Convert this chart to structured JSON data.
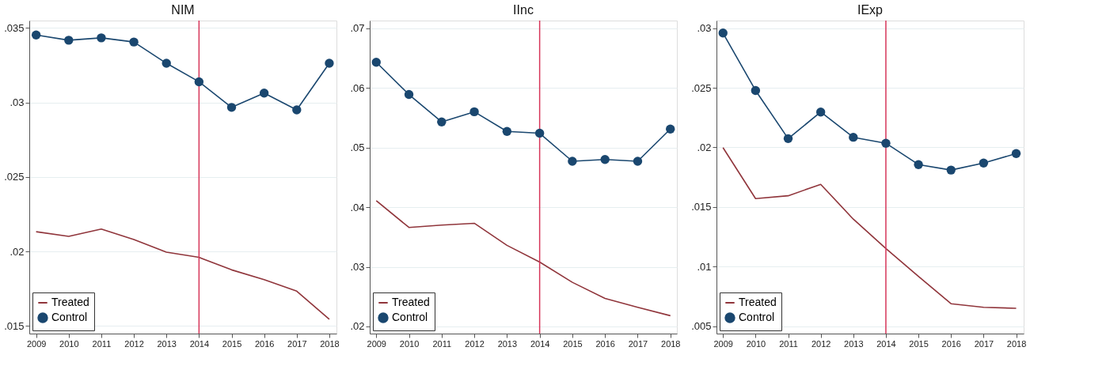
{
  "chart_data": [
    {
      "type": "line",
      "title": "NIM",
      "x": [
        2009,
        2010,
        2011,
        2012,
        2013,
        2014,
        2015,
        2016,
        2017,
        2018
      ],
      "xlim": [
        2008.79,
        2018.22
      ],
      "xticks": [
        2009,
        2010,
        2011,
        2012,
        2013,
        2014,
        2015,
        2016,
        2017,
        2018
      ],
      "ylim": [
        0.01448,
        0.0355
      ],
      "yticks": [
        {
          "value": 0.015,
          "label": ".015"
        },
        {
          "value": 0.02,
          "label": ".02"
        },
        {
          "value": 0.025,
          "label": ".025"
        },
        {
          "value": 0.03,
          "label": ".03"
        },
        {
          "value": 0.035,
          "label": ".035"
        }
      ],
      "grid": "y",
      "legend": "bottom left",
      "ref_lines": [
        {
          "axis": "x",
          "value": 2014,
          "color": "#d6365a"
        }
      ],
      "series": [
        {
          "name": "Treated",
          "color": "#90353b",
          "marker": "none",
          "values": [
            0.02132,
            0.02101,
            0.0215,
            0.0208,
            0.01995,
            0.0196,
            0.01876,
            0.0181,
            0.01733,
            0.01544
          ]
        },
        {
          "name": "Control",
          "color": "#1a476f",
          "marker": "circle",
          "values": [
            0.03453,
            0.03418,
            0.03434,
            0.03406,
            0.03263,
            0.03139,
            0.02967,
            0.03063,
            0.0295,
            0.03263
          ]
        }
      ]
    },
    {
      "type": "line",
      "title": "IInc",
      "x": [
        2009,
        2010,
        2011,
        2012,
        2013,
        2014,
        2015,
        2016,
        2017,
        2018
      ],
      "xlim": [
        2008.8,
        2018.2
      ],
      "xticks": [
        2009,
        2010,
        2011,
        2012,
        2013,
        2014,
        2015,
        2016,
        2017,
        2018
      ],
      "ylim": [
        0.0188,
        0.0713
      ],
      "yticks": [
        {
          "value": 0.02,
          "label": ".02"
        },
        {
          "value": 0.03,
          "label": ".03"
        },
        {
          "value": 0.04,
          "label": ".04"
        },
        {
          "value": 0.05,
          "label": ".05"
        },
        {
          "value": 0.06,
          "label": ".06"
        },
        {
          "value": 0.07,
          "label": ".07"
        }
      ],
      "grid": "y",
      "legend": "bottom left",
      "ref_lines": [
        {
          "axis": "x",
          "value": 2014,
          "color": "#d6365a"
        }
      ],
      "series": [
        {
          "name": "Treated",
          "color": "#90353b",
          "marker": "none",
          "values": [
            0.0411,
            0.0366,
            0.037,
            0.0373,
            0.0336,
            0.0308,
            0.0274,
            0.0247,
            0.0232,
            0.0218
          ]
        },
        {
          "name": "Control",
          "color": "#1a476f",
          "marker": "circle",
          "values": [
            0.0643,
            0.0589,
            0.0543,
            0.056,
            0.0527,
            0.0524,
            0.0477,
            0.048,
            0.0477,
            0.0531
          ]
        }
      ]
    },
    {
      "type": "line",
      "title": "IExp",
      "x": [
        2009,
        2010,
        2011,
        2012,
        2013,
        2014,
        2015,
        2016,
        2017,
        2018
      ],
      "xlim": [
        2008.8,
        2018.23
      ],
      "xticks": [
        2009,
        2010,
        2011,
        2012,
        2013,
        2014,
        2015,
        2016,
        2017,
        2018
      ],
      "ylim": [
        0.00437,
        0.03065
      ],
      "yticks": [
        {
          "value": 0.005,
          "label": ".005"
        },
        {
          "value": 0.01,
          "label": ".01"
        },
        {
          "value": 0.015,
          "label": ".015"
        },
        {
          "value": 0.02,
          "label": ".02"
        },
        {
          "value": 0.025,
          "label": ".025"
        },
        {
          "value": 0.03,
          "label": ".03"
        }
      ],
      "grid": "y",
      "legend": "bottom left",
      "ref_lines": [
        {
          "axis": "x",
          "value": 2014,
          "color": "#d6365a"
        }
      ],
      "series": [
        {
          "name": "Treated",
          "color": "#90353b",
          "marker": "none",
          "values": [
            0.01998,
            0.0157,
            0.01594,
            0.0169,
            0.01398,
            0.01151,
            0.00917,
            0.00688,
            0.00658,
            0.00649
          ]
        },
        {
          "name": "Control",
          "color": "#1a476f",
          "marker": "circle",
          "values": [
            0.0296,
            0.02478,
            0.02074,
            0.02297,
            0.02085,
            0.02035,
            0.01856,
            0.0181,
            0.01869,
            0.01948
          ]
        }
      ]
    }
  ]
}
